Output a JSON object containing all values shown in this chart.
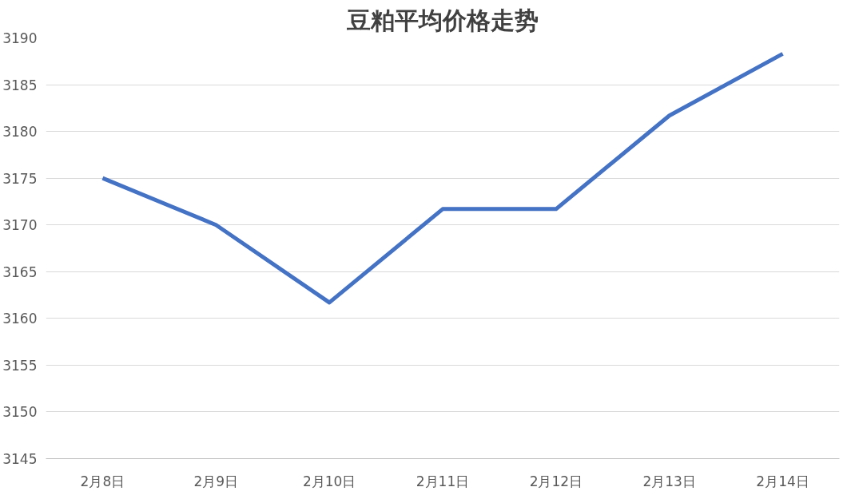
{
  "chart_data": {
    "type": "line",
    "title": "豆粕平均价格走势",
    "categories": [
      "2月8日",
      "2月9日",
      "2月10日",
      "2月11日",
      "2月12日",
      "2月13日",
      "2月14日"
    ],
    "series": [
      {
        "color": "#4472c4",
        "values": [
          3175,
          3170,
          3161.7,
          3171.7,
          3171.7,
          3181.7,
          3188.3
        ]
      }
    ],
    "ylim": [
      3145,
      3190
    ],
    "yticks": [
      3145,
      3150,
      3155,
      3160,
      3165,
      3170,
      3175,
      3180,
      3185,
      3190
    ],
    "grid": "y",
    "marker": "none",
    "line_style": "solid"
  }
}
